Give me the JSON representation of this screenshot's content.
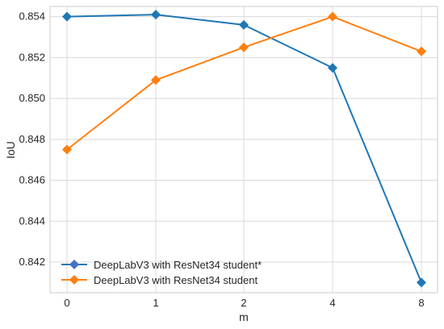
{
  "chart_data": {
    "type": "line",
    "xlabel": "m",
    "ylabel": "IoU",
    "categories": [
      "0",
      "1",
      "2",
      "4",
      "8"
    ],
    "ylim": [
      0.8405,
      0.8545
    ],
    "yticks": [
      "0.842",
      "0.844",
      "0.846",
      "0.848",
      "0.850",
      "0.852",
      "0.854"
    ],
    "grid": true,
    "legend_position": "bottom-left",
    "series": [
      {
        "name": "DeepLabV3 with ResNet34 student*",
        "values": [
          0.854,
          0.8541,
          0.8536,
          0.8515,
          0.841
        ],
        "line_color": "#1f77b4",
        "marker_color": "#4472c4",
        "marker": "diamond"
      },
      {
        "name": "DeepLabV3 with ResNet34 student",
        "values": [
          0.8475,
          0.8509,
          0.8525,
          0.854,
          0.8523
        ],
        "line_color": "#ff7f0e",
        "marker_color": "#ff7f0e",
        "marker": "diamond"
      }
    ]
  }
}
